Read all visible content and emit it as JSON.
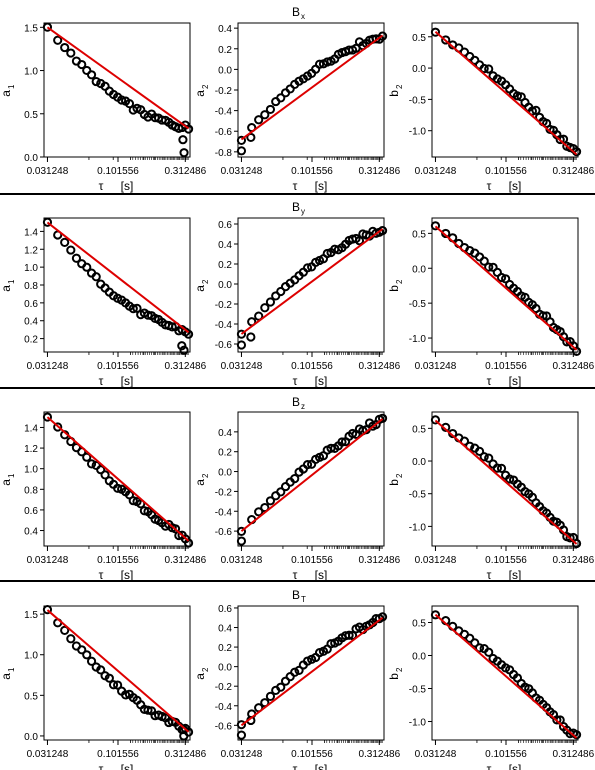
{
  "rows": [
    {
      "title": "B",
      "title_sub": "x",
      "panels": [
        {
          "ylabel": "a",
          "ylabel_sub": "1",
          "ylim": [
            0.0,
            1.55
          ],
          "yticks": [
            0.0,
            0.5,
            1.0,
            1.5
          ],
          "ytick_labels": [
            "0.0",
            "0.5",
            "1.0",
            "1.5"
          ],
          "fit": [
            1.5,
            0.33
          ],
          "curve": -0.05,
          "outliers": [
            [
              1.38,
              0.2
            ],
            [
              1.46,
              0.05
            ]
          ]
        },
        {
          "ylabel": "a",
          "ylabel_sub": "2",
          "ylim": [
            -0.85,
            0.45
          ],
          "yticks": [
            -0.8,
            -0.6,
            -0.4,
            -0.2,
            0.0,
            0.2,
            0.4
          ],
          "ytick_labels": [
            "-0.8",
            "-0.6",
            "-0.4",
            "-0.2",
            "0.0",
            "0.2",
            "0.4"
          ],
          "fit": [
            -0.68,
            0.33
          ],
          "curve": 0.04,
          "outliers": [
            [
              0.0,
              -0.79
            ],
            [
              0.2,
              -0.66
            ]
          ]
        },
        {
          "ylabel": "b",
          "ylabel_sub": "2",
          "ylim": [
            -1.42,
            0.72
          ],
          "yticks": [
            -1.0,
            -0.5,
            0.0,
            0.5
          ],
          "ytick_labels": [
            "-1.0",
            "-0.5",
            "0.0",
            "0.5"
          ],
          "fit": [
            0.58,
            -1.38
          ],
          "curve": 0.02,
          "outliers": []
        }
      ]
    },
    {
      "title": "B",
      "title_sub": "y",
      "panels": [
        {
          "ylabel": "a",
          "ylabel_sub": "1",
          "ylim": [
            0.05,
            1.55
          ],
          "yticks": [
            0.2,
            0.4,
            0.6,
            0.8,
            1.0,
            1.2,
            1.4
          ],
          "ytick_labels": [
            "0.2",
            "0.4",
            "0.6",
            "0.8",
            "1.0",
            "1.2",
            "1.4"
          ],
          "fit": [
            1.5,
            0.27
          ],
          "curve": -0.05,
          "outliers": [
            [
              1.3,
              0.12
            ],
            [
              1.46,
              0.07
            ]
          ]
        },
        {
          "ylabel": "a",
          "ylabel_sub": "2",
          "ylim": [
            -0.68,
            0.66
          ],
          "yticks": [
            -0.6,
            -0.4,
            -0.2,
            0.0,
            0.2,
            0.4,
            0.6
          ],
          "ytick_labels": [
            "-0.6",
            "-0.4",
            "-0.2",
            "0.0",
            "0.2",
            "0.4",
            "0.6"
          ],
          "fit": [
            -0.5,
            0.55
          ],
          "curve": 0.04,
          "outliers": [
            [
              0.0,
              -0.61
            ],
            [
              0.2,
              -0.53
            ]
          ]
        },
        {
          "ylabel": "b",
          "ylabel_sub": "2",
          "ylim": [
            -1.2,
            0.72
          ],
          "yticks": [
            -1.0,
            -0.5,
            0.0,
            0.5
          ],
          "ytick_labels": [
            "-1.0",
            "-0.5",
            "0.0",
            "0.5"
          ],
          "fit": [
            0.6,
            -1.17
          ],
          "curve": 0.02,
          "outliers": []
        }
      ]
    },
    {
      "title": "B",
      "title_sub": "z",
      "panels": [
        {
          "ylabel": "a",
          "ylabel_sub": "1",
          "ylim": [
            0.25,
            1.55
          ],
          "yticks": [
            0.4,
            0.6,
            0.8,
            1.0,
            1.2,
            1.4
          ],
          "ytick_labels": [
            "0.4",
            "0.6",
            "0.8",
            "1.0",
            "1.2",
            "1.4"
          ],
          "fit": [
            1.5,
            0.3
          ],
          "curve": -0.02,
          "outliers": []
        },
        {
          "ylabel": "a",
          "ylabel_sub": "2",
          "ylim": [
            -0.75,
            0.6
          ],
          "yticks": [
            -0.6,
            -0.4,
            -0.2,
            0.0,
            0.2,
            0.4
          ],
          "ytick_labels": [
            "-0.6",
            "-0.4",
            "-0.2",
            "0.0",
            "0.2",
            "0.4"
          ],
          "fit": [
            -0.6,
            0.53
          ],
          "curve": 0.03,
          "outliers": [
            [
              0.0,
              -0.7
            ]
          ]
        },
        {
          "ylabel": "b",
          "ylabel_sub": "2",
          "ylim": [
            -1.3,
            0.75
          ],
          "yticks": [
            -1.0,
            -0.5,
            0.0,
            0.5
          ],
          "ytick_labels": [
            "-1.0",
            "-0.5",
            "0.0",
            "0.5"
          ],
          "fit": [
            0.62,
            -1.27
          ],
          "curve": 0.02,
          "outliers": []
        }
      ]
    },
    {
      "title": "B",
      "title_sub": "T",
      "panels": [
        {
          "ylabel": "a",
          "ylabel_sub": "1",
          "ylim": [
            -0.05,
            1.6
          ],
          "yticks": [
            0.0,
            0.5,
            1.0,
            1.5
          ],
          "ytick_labels": [
            "0.0",
            "0.5",
            "1.0",
            "1.5"
          ],
          "fit": [
            1.55,
            0.05
          ],
          "curve": -0.04,
          "outliers": [
            [
              1.44,
              0.0
            ],
            [
              1.41,
              0.08
            ]
          ]
        },
        {
          "ylabel": "a",
          "ylabel_sub": "2",
          "ylim": [
            -0.75,
            0.62
          ],
          "yticks": [
            -0.6,
            -0.4,
            -0.2,
            0.0,
            0.2,
            0.4,
            0.6
          ],
          "ytick_labels": [
            "-0.6",
            "-0.4",
            "-0.2",
            "0.0",
            "0.2",
            "0.4",
            "0.6"
          ],
          "fit": [
            -0.6,
            0.5
          ],
          "curve": 0.03,
          "outliers": [
            [
              0.0,
              -0.7
            ],
            [
              0.2,
              -0.55
            ]
          ]
        },
        {
          "ylabel": "b",
          "ylabel_sub": "2",
          "ylim": [
            -1.28,
            0.75
          ],
          "yticks": [
            -1.0,
            -0.5,
            0.0,
            0.5
          ],
          "ytick_labels": [
            "-1.0",
            "-0.5",
            "0.0",
            "0.5"
          ],
          "fit": [
            0.62,
            -1.25
          ],
          "curve": 0.02,
          "outliers": []
        }
      ]
    }
  ],
  "x_axis": {
    "label": "τ",
    "unit": "[s]",
    "tick_labels": [
      "0.031248",
      "0.101556",
      "0.312486"
    ],
    "scale": "log"
  },
  "colors": {
    "points": "#000000",
    "fit": "#dd0000",
    "axes": "#000000"
  },
  "chart_data": {
    "type": "scatter",
    "layout": "4 rows x 3 columns",
    "x_scale": "log",
    "x_label": "τ [s]",
    "x_ticks": [
      0.031248,
      0.101556,
      0.312486
    ],
    "series_note": "open circles = estimated coefficient vs τ, red line = linear fit in log τ",
    "panels": [
      {
        "row": "Bx",
        "y": "a1",
        "fit_start": 1.5,
        "fit_end": 0.33
      },
      {
        "row": "Bx",
        "y": "a2",
        "fit_start": -0.68,
        "fit_end": 0.33
      },
      {
        "row": "Bx",
        "y": "b2",
        "fit_start": 0.58,
        "fit_end": -1.38
      },
      {
        "row": "By",
        "y": "a1",
        "fit_start": 1.5,
        "fit_end": 0.27
      },
      {
        "row": "By",
        "y": "a2",
        "fit_start": -0.5,
        "fit_end": 0.55
      },
      {
        "row": "By",
        "y": "b2",
        "fit_start": 0.6,
        "fit_end": -1.17
      },
      {
        "row": "Bz",
        "y": "a1",
        "fit_start": 1.5,
        "fit_end": 0.3
      },
      {
        "row": "Bz",
        "y": "a2",
        "fit_start": -0.6,
        "fit_end": 0.53
      },
      {
        "row": "Bz",
        "y": "b2",
        "fit_start": 0.62,
        "fit_end": -1.27
      },
      {
        "row": "BT",
        "y": "a1",
        "fit_start": 1.55,
        "fit_end": 0.05
      },
      {
        "row": "BT",
        "y": "a2",
        "fit_start": -0.6,
        "fit_end": 0.5
      },
      {
        "row": "BT",
        "y": "b2",
        "fit_start": 0.62,
        "fit_end": -1.25
      }
    ]
  }
}
